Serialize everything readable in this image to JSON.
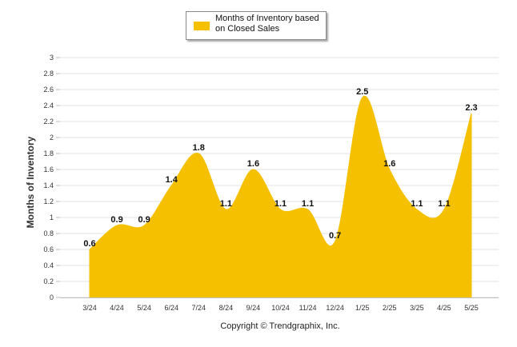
{
  "chart_data": {
    "type": "area",
    "categories": [
      "3/24",
      "4/24",
      "5/24",
      "6/24",
      "7/24",
      "8/24",
      "9/24",
      "10/24",
      "11/24",
      "12/24",
      "1/25",
      "2/25",
      "3/25",
      "4/25",
      "5/25"
    ],
    "series": [
      {
        "name": "Months of Inventory based\non Closed Sales",
        "values": [
          0.6,
          0.9,
          0.9,
          1.4,
          1.8,
          1.1,
          1.6,
          1.1,
          1.1,
          0.7,
          2.5,
          1.6,
          1.1,
          1.1,
          2.3
        ],
        "color": "#f5c000"
      }
    ],
    "ylabel": "Months of Inventory",
    "xlabel": "",
    "ylim": [
      0,
      3
    ],
    "yticks": [
      "0",
      "0.2",
      "0.4",
      "0.6",
      "0.8",
      "1",
      "1.2",
      "1.4",
      "1.6",
      "1.8",
      "2",
      "2.2",
      "2.4",
      "2.6",
      "2.8",
      "3"
    ],
    "grid": true,
    "legend": "top-center",
    "data_labels": [
      "0.6",
      "0.9",
      "0.9",
      "1.4",
      "1.8",
      "1.1",
      "1.6",
      "1.1",
      "1.1",
      "0.7",
      "2.5",
      "1.6",
      "1.1",
      "1.1",
      "2.3"
    ]
  },
  "footer": {
    "copyright": "Copyright © Trendgraphix, Inc."
  }
}
